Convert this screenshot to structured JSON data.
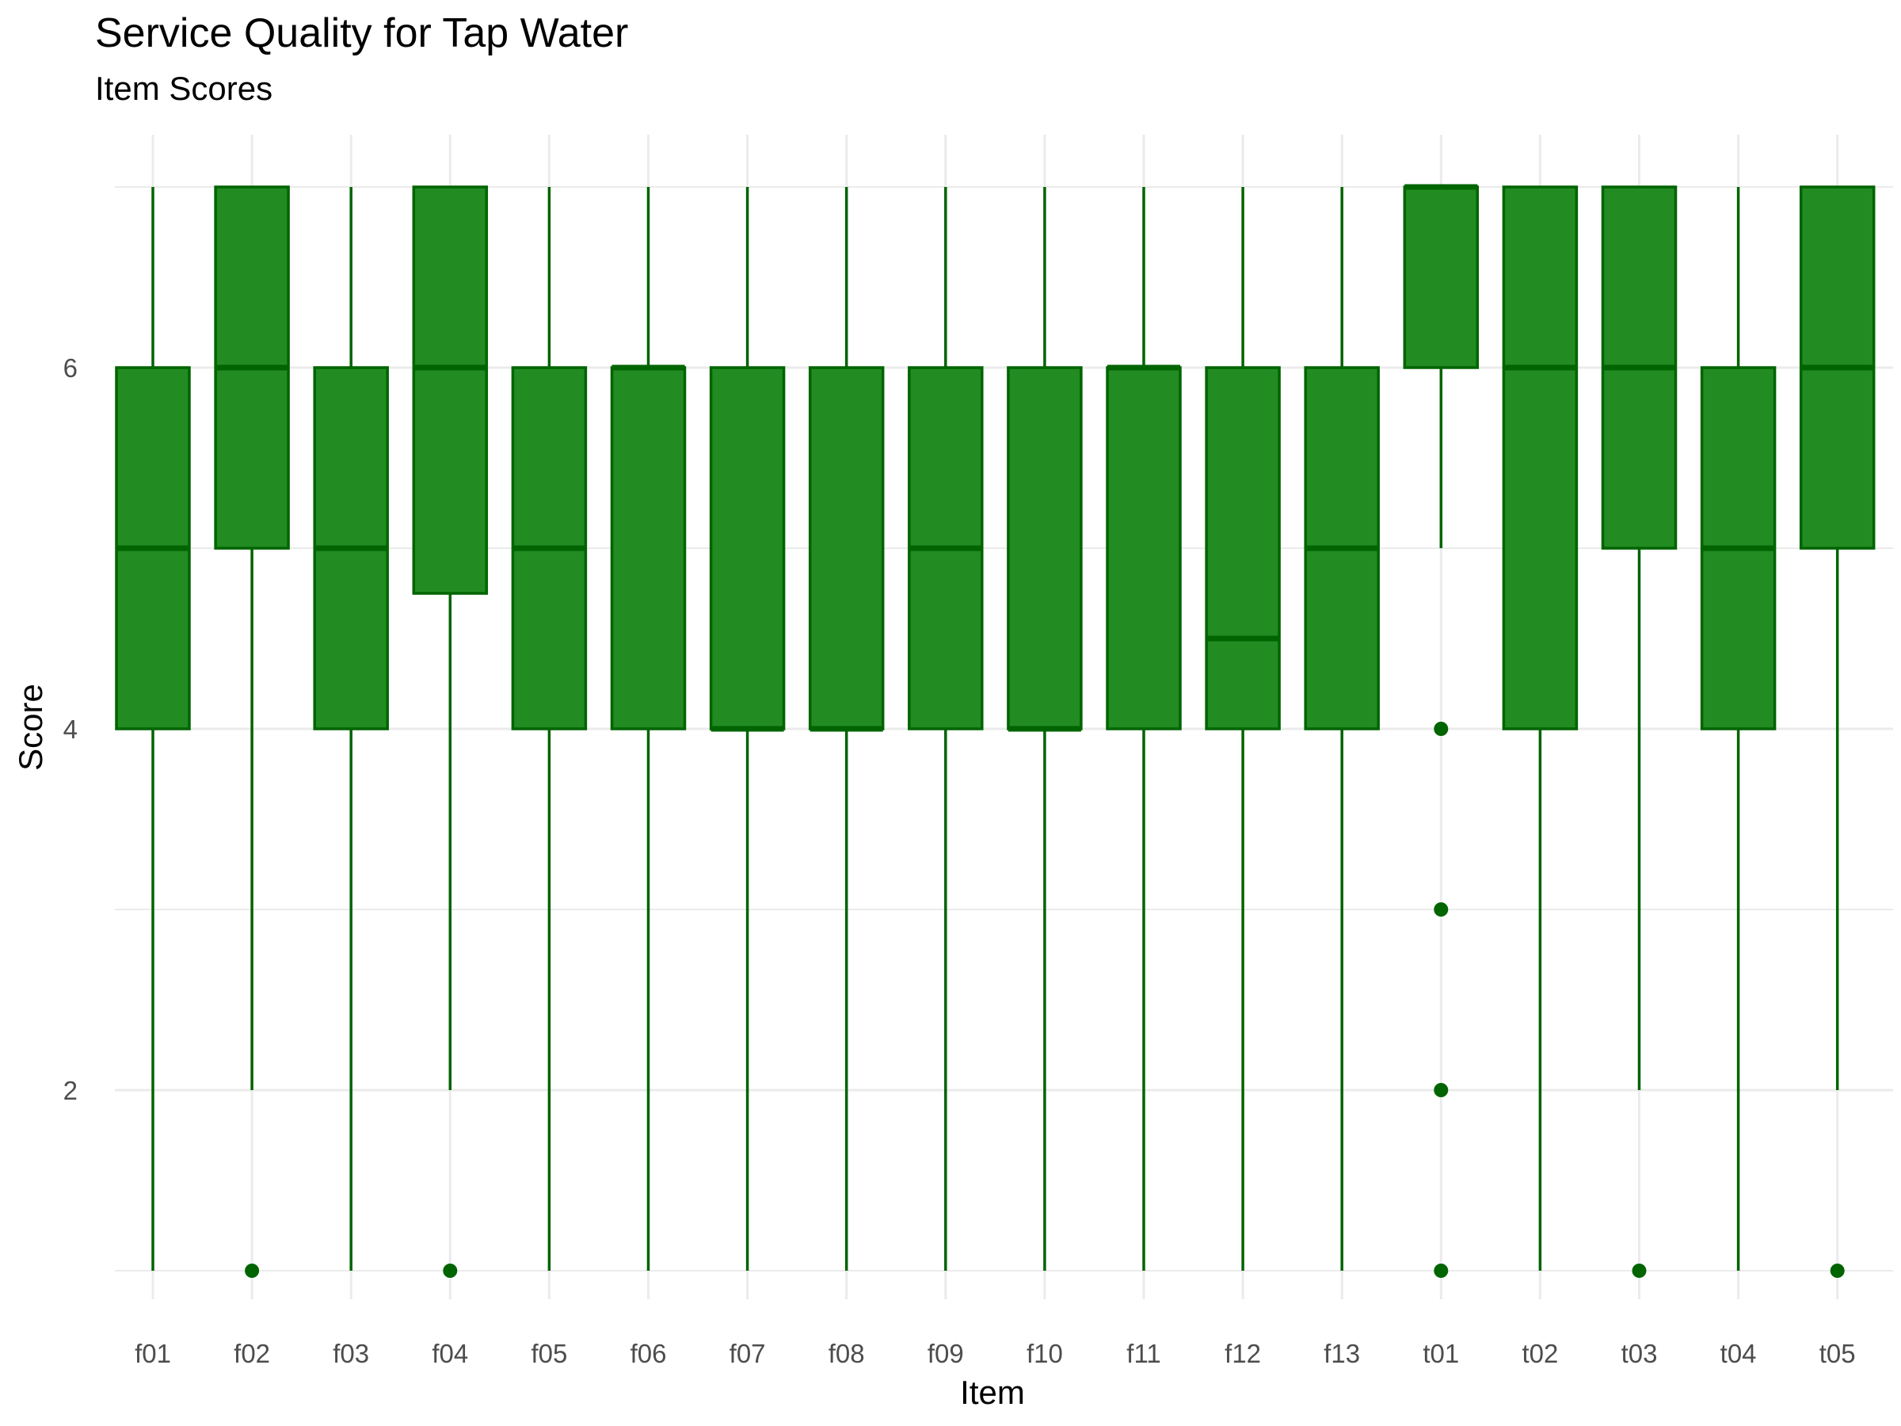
{
  "title": "Service Quality for Tap Water",
  "subtitle": "Item Scores",
  "chart_data": {
    "type": "boxplot",
    "xlabel": "Item",
    "ylabel": "Score",
    "ylim": [
      0.85,
      7.2
    ],
    "yticks": [
      2,
      4,
      6
    ],
    "grid": true,
    "fill_color": "#228B22",
    "line_color": "#006400",
    "categories": [
      "f01",
      "f02",
      "f03",
      "f04",
      "f05",
      "f06",
      "f07",
      "f08",
      "f09",
      "f10",
      "f11",
      "f12",
      "f13",
      "t01",
      "t02",
      "t03",
      "t04",
      "t05"
    ],
    "boxes": [
      {
        "item": "f01",
        "whisker_low": 1,
        "q1": 4,
        "median": 5,
        "q3": 6,
        "whisker_high": 7,
        "outliers": []
      },
      {
        "item": "f02",
        "whisker_low": 2,
        "q1": 5,
        "median": 6,
        "q3": 7,
        "whisker_high": 7,
        "outliers": [
          1
        ]
      },
      {
        "item": "f03",
        "whisker_low": 1,
        "q1": 4,
        "median": 5,
        "q3": 6,
        "whisker_high": 7,
        "outliers": []
      },
      {
        "item": "f04",
        "whisker_low": 2,
        "q1": 4.75,
        "median": 6,
        "q3": 7,
        "whisker_high": 7,
        "outliers": [
          1
        ]
      },
      {
        "item": "f05",
        "whisker_low": 1,
        "q1": 4,
        "median": 5,
        "q3": 6,
        "whisker_high": 7,
        "outliers": []
      },
      {
        "item": "f06",
        "whisker_low": 1,
        "q1": 4,
        "median": 6,
        "q3": 6,
        "whisker_high": 7,
        "outliers": []
      },
      {
        "item": "f07",
        "whisker_low": 1,
        "q1": 4,
        "median": 4,
        "q3": 6,
        "whisker_high": 7,
        "outliers": []
      },
      {
        "item": "f08",
        "whisker_low": 1,
        "q1": 4,
        "median": 4,
        "q3": 6,
        "whisker_high": 7,
        "outliers": []
      },
      {
        "item": "f09",
        "whisker_low": 1,
        "q1": 4,
        "median": 5,
        "q3": 6,
        "whisker_high": 7,
        "outliers": []
      },
      {
        "item": "f10",
        "whisker_low": 1,
        "q1": 4,
        "median": 4,
        "q3": 6,
        "whisker_high": 7,
        "outliers": []
      },
      {
        "item": "f11",
        "whisker_low": 1,
        "q1": 4,
        "median": 6,
        "q3": 6,
        "whisker_high": 7,
        "outliers": []
      },
      {
        "item": "f12",
        "whisker_low": 1,
        "q1": 4,
        "median": 4.5,
        "q3": 6,
        "whisker_high": 7,
        "outliers": []
      },
      {
        "item": "f13",
        "whisker_low": 1,
        "q1": 4,
        "median": 5,
        "q3": 6,
        "whisker_high": 7,
        "outliers": []
      },
      {
        "item": "t01",
        "whisker_low": 5,
        "q1": 6,
        "median": 7,
        "q3": 7,
        "whisker_high": 7,
        "outliers": [
          4,
          3,
          2,
          1
        ]
      },
      {
        "item": "t02",
        "whisker_low": 1,
        "q1": 4,
        "median": 6,
        "q3": 7,
        "whisker_high": 7,
        "outliers": []
      },
      {
        "item": "t03",
        "whisker_low": 2,
        "q1": 5,
        "median": 6,
        "q3": 7,
        "whisker_high": 7,
        "outliers": [
          1
        ]
      },
      {
        "item": "t04",
        "whisker_low": 1,
        "q1": 4,
        "median": 5,
        "q3": 6,
        "whisker_high": 7,
        "outliers": []
      },
      {
        "item": "t05",
        "whisker_low": 2,
        "q1": 5,
        "median": 6,
        "q3": 7,
        "whisker_high": 7,
        "outliers": [
          1
        ]
      }
    ]
  }
}
